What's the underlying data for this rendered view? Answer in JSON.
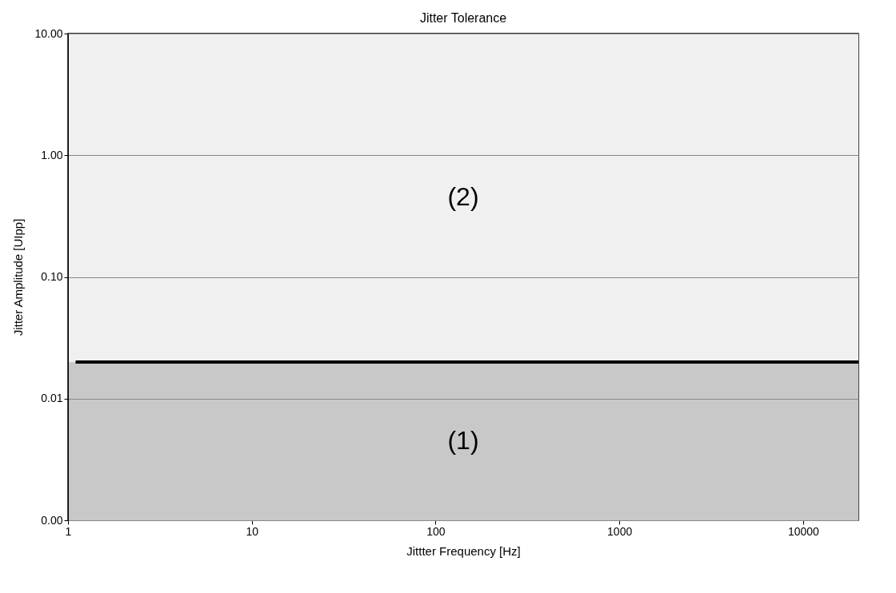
{
  "chart_data": {
    "type": "line",
    "title": "Jitter Tolerance",
    "xlabel": "Jittter Frequency [Hz]",
    "ylabel": "Jitter Amplitude [UIpp]",
    "series": [
      {
        "x": [
          1.1,
          20000
        ],
        "values": [
          0.02,
          0.02
        ],
        "color": "#000000"
      }
    ],
    "log": "xy",
    "xlim": [
      1,
      20000
    ],
    "ylim": [
      0.001,
      10
    ],
    "xticks": [
      1,
      10,
      100,
      1000,
      10000
    ],
    "yticks": [
      {
        "value": 0.001,
        "label": "0.00"
      },
      {
        "value": 0.01,
        "label": "0.01"
      },
      {
        "value": 0.1,
        "label": "0.10"
      },
      {
        "value": 1,
        "label": "1.00"
      },
      {
        "value": 10,
        "label": "10.00"
      }
    ],
    "bands": [
      {
        "axis": "y",
        "from": 0.001,
        "to": 0.02,
        "label": "(1)",
        "color": "#c8c8c8"
      },
      {
        "axis": "y",
        "from": 0.02,
        "to": 10,
        "label": "(2)",
        "color": "#f0f0f0"
      }
    ],
    "grid": "y",
    "marker": "none",
    "line_style": "solid"
  }
}
